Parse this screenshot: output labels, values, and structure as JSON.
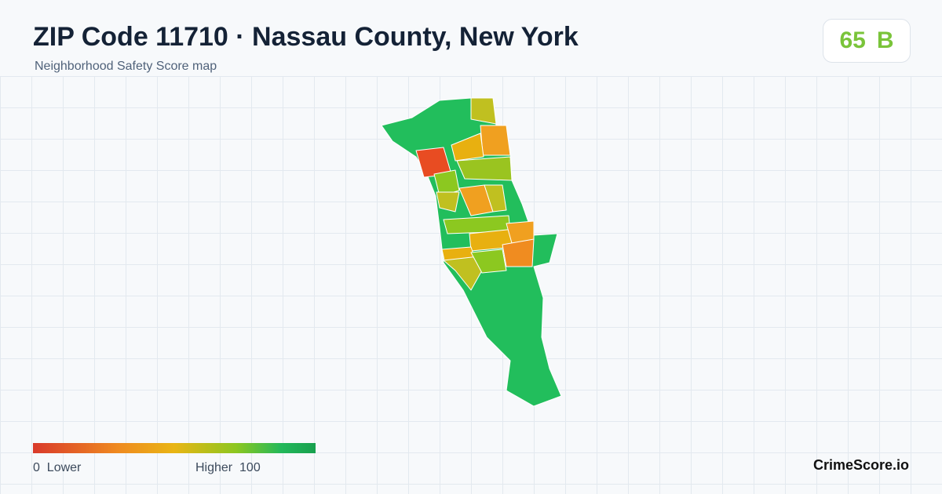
{
  "header": {
    "title": "ZIP Code 11710 · Nassau County, New York",
    "subtitle": "Neighborhood Safety Score map"
  },
  "score": {
    "value": "65",
    "grade": "B"
  },
  "legend": {
    "min": "0",
    "min_label": "Lower",
    "max_label": "Higher",
    "max": "100"
  },
  "brand": "CrimeScore.io"
}
